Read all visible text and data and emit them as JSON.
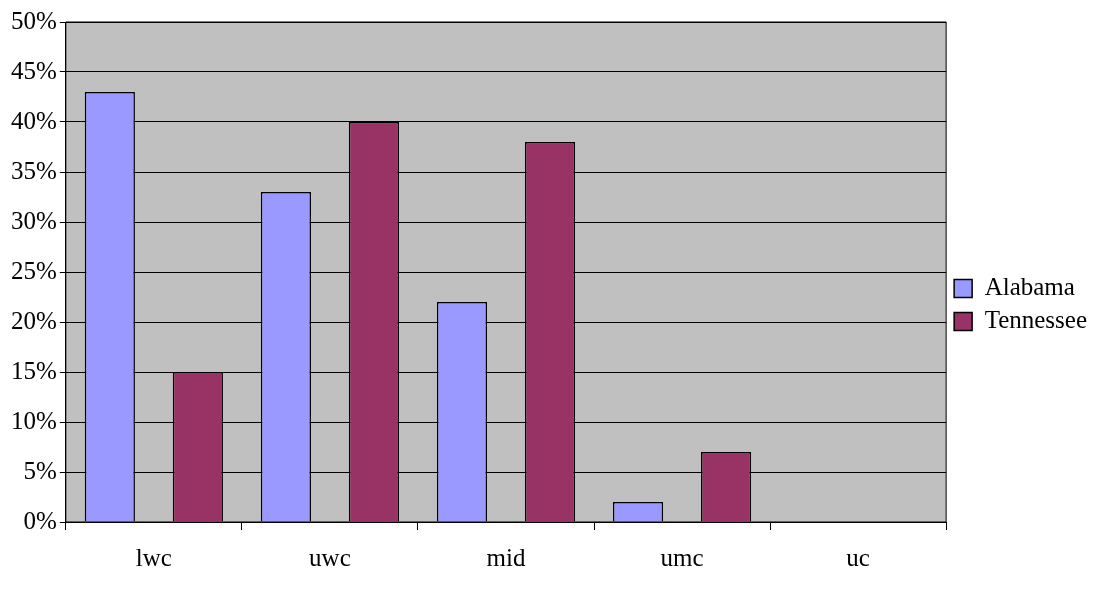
{
  "chart_data": {
    "type": "bar",
    "categories": [
      "lwc",
      "uwc",
      "mid",
      "umc",
      "uc"
    ],
    "series": [
      {
        "name": "Alabama",
        "color": "#9999ff",
        "values": [
          43,
          33,
          22,
          2,
          0
        ]
      },
      {
        "name": "Tennessee",
        "color": "#993366",
        "values": [
          15,
          40,
          38,
          7,
          0
        ]
      }
    ],
    "ylim": [
      0,
      50
    ],
    "yticks": [
      {
        "value": 0,
        "label": "0%"
      },
      {
        "value": 5,
        "label": "5%"
      },
      {
        "value": 10,
        "label": "10%"
      },
      {
        "value": 15,
        "label": "15%"
      },
      {
        "value": 20,
        "label": "20%"
      },
      {
        "value": 25,
        "label": "25%"
      },
      {
        "value": 30,
        "label": "30%"
      },
      {
        "value": 35,
        "label": "35%"
      },
      {
        "value": 40,
        "label": "40%"
      },
      {
        "value": 45,
        "label": "45%"
      },
      {
        "value": 50,
        "label": "50%"
      }
    ],
    "grid": "y",
    "legend": "right"
  }
}
